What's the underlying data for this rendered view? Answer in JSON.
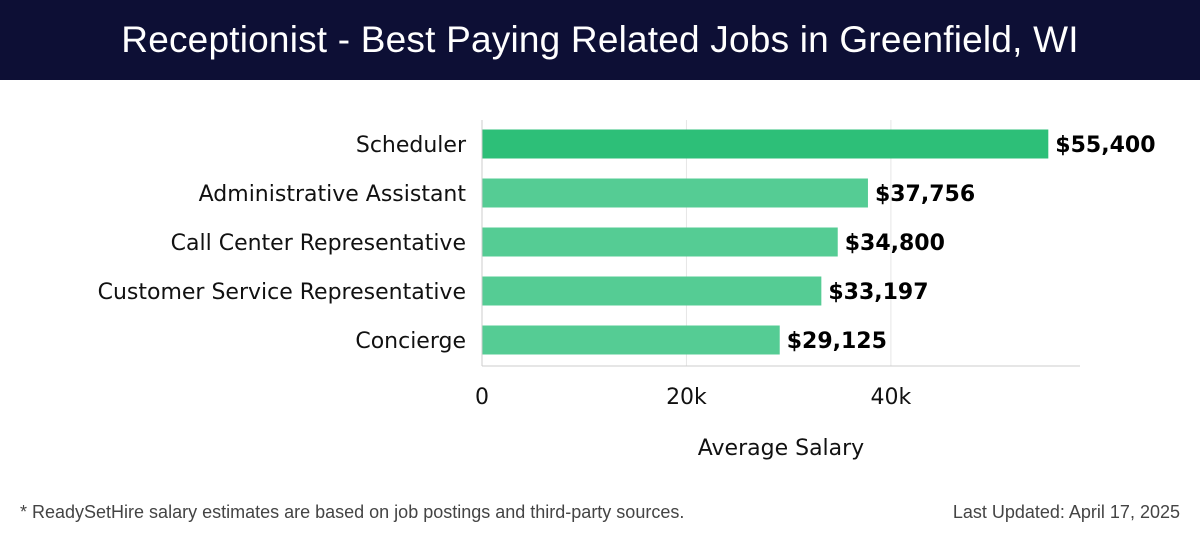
{
  "header": {
    "title": "Receptionist - Best Paying Related Jobs in Greenfield, WI"
  },
  "chart_data": {
    "type": "bar",
    "orientation": "horizontal",
    "title": "Receptionist - Best Paying Related Jobs in Greenfield, WI",
    "categories": [
      "Scheduler",
      "Administrative Assistant",
      "Call Center Representative",
      "Customer Service Representative",
      "Concierge"
    ],
    "values": [
      55400,
      37756,
      34800,
      33197,
      29125
    ],
    "value_labels": [
      "$55,400",
      "$37,756",
      "$34,800",
      "$33,197",
      "$29,125"
    ],
    "xlabel": "Average Salary",
    "ylabel": "",
    "xlim": [
      0,
      58500
    ],
    "x_ticks": [
      0,
      20000,
      40000
    ],
    "x_tick_labels": [
      "0",
      "20k",
      "40k"
    ],
    "grid": "vertical",
    "colors": {
      "highlight": "#2dbf78",
      "bar": "#55cc94",
      "grid": "#e6e6e6",
      "axis": "#cccccc"
    }
  },
  "footer": {
    "note": "* ReadySetHire salary estimates are based on job postings and third-party sources.",
    "updated": "Last Updated: April 17, 2025"
  },
  "colors": {
    "header_bg": "#0d0f35",
    "header_text": "#ffffff"
  }
}
